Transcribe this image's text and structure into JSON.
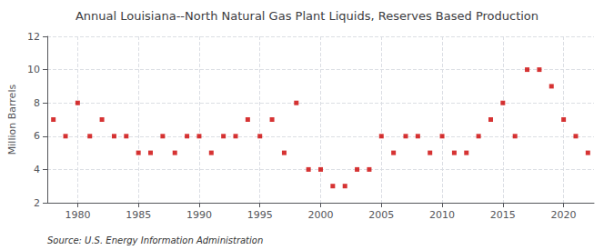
{
  "chart_data": {
    "type": "scatter",
    "title": "Annual Louisiana--North Natural Gas Plant Liquids, Reserves Based Production",
    "ylabel": "Million Barrels",
    "source": "Source: U.S. Energy Information Administration",
    "x": [
      1978,
      1979,
      1980,
      1981,
      1982,
      1983,
      1984,
      1985,
      1986,
      1987,
      1988,
      1989,
      1990,
      1991,
      1992,
      1993,
      1994,
      1995,
      1996,
      1997,
      1998,
      1999,
      2000,
      2001,
      2002,
      2003,
      2004,
      2005,
      2006,
      2007,
      2008,
      2009,
      2010,
      2011,
      2012,
      2013,
      2014,
      2015,
      2016,
      2017,
      2018,
      2019,
      2020,
      2021,
      2022
    ],
    "values": [
      7,
      6,
      8,
      6,
      7,
      6,
      6,
      5,
      5,
      6,
      5,
      6,
      6,
      5,
      6,
      6,
      7,
      6,
      7,
      5,
      8,
      4,
      4,
      3,
      3,
      4,
      4,
      6,
      5,
      6,
      6,
      5,
      6,
      5,
      5,
      6,
      7,
      8,
      6,
      10,
      10,
      9,
      7,
      6,
      5
    ],
    "color": "#cc0000",
    "marker": "square",
    "xlim": [
      1977.5,
      2022.5
    ],
    "xticks": [
      1980,
      1985,
      1990,
      1995,
      2000,
      2005,
      2010,
      2015,
      2020
    ],
    "ylim": [
      2,
      12
    ],
    "yticks": [
      2,
      4,
      6,
      8,
      10,
      12
    ],
    "grid": true
  }
}
